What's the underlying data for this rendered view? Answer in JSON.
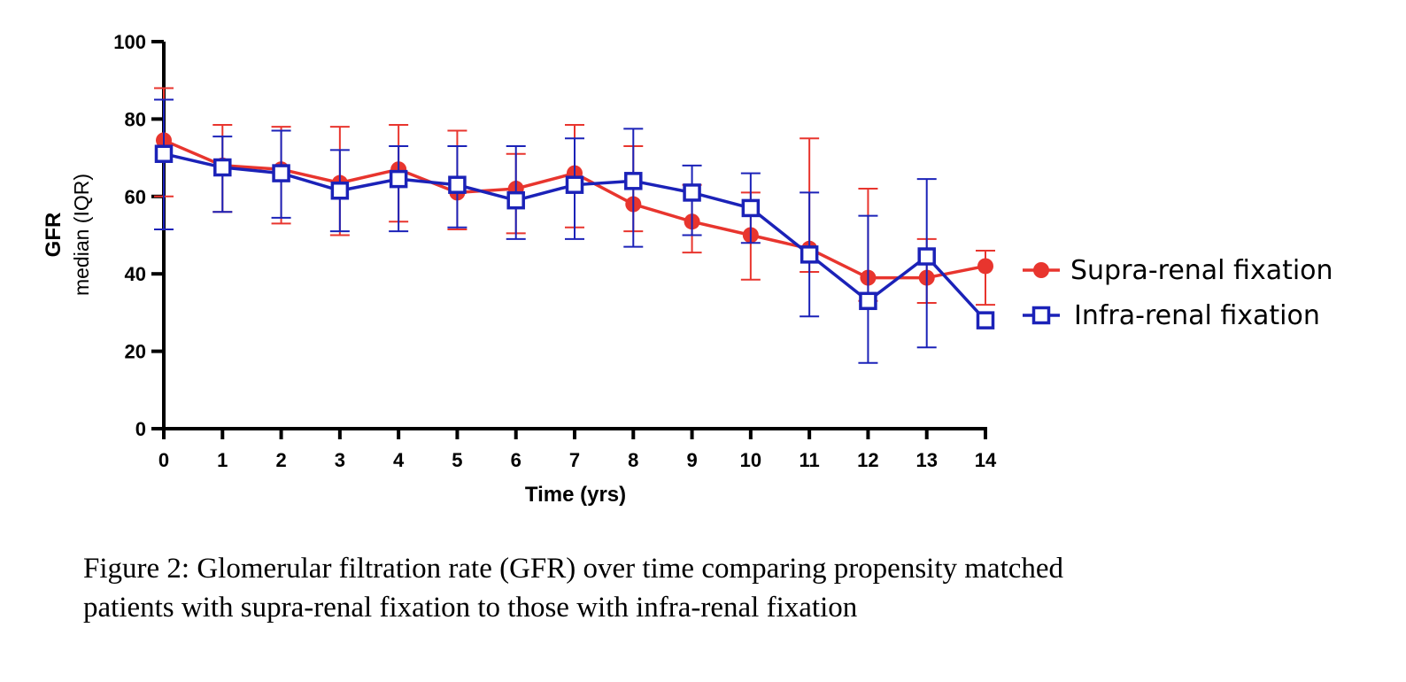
{
  "chart_data": {
    "type": "line",
    "title": "",
    "xlabel": "Time (yrs)",
    "ylabel": "GFR",
    "ylabel_sub": "median (IQR)",
    "xlim": [
      0,
      14
    ],
    "ylim": [
      0,
      100
    ],
    "x_ticks": [
      0,
      1,
      2,
      3,
      4,
      5,
      6,
      7,
      8,
      9,
      10,
      11,
      12,
      13,
      14
    ],
    "y_ticks": [
      0,
      20,
      40,
      60,
      80,
      100
    ],
    "grid": false,
    "legend_position": "right",
    "series": [
      {
        "name": "Supra-renal fixation",
        "color": "#e8352e",
        "marker": "filled-circle",
        "x": [
          0,
          1,
          2,
          3,
          4,
          5,
          6,
          7,
          8,
          9,
          10,
          11,
          12,
          13,
          14
        ],
        "median": [
          74.5,
          68,
          67,
          63.5,
          67,
          61,
          62,
          66,
          58,
          53.5,
          50,
          46.5,
          39,
          39,
          42
        ],
        "q1": [
          60,
          56,
          53,
          50,
          53.5,
          51.5,
          50.5,
          52,
          51,
          45.5,
          38.5,
          40.5,
          33,
          32.5,
          32
        ],
        "q3": [
          88,
          78.5,
          78,
          78,
          78.5,
          77,
          71,
          78.5,
          73,
          63,
          61,
          75,
          62,
          49,
          46
        ]
      },
      {
        "name": "Infra-renal fixation",
        "color": "#1b22b8",
        "marker": "open-square",
        "x": [
          0,
          1,
          2,
          3,
          4,
          5,
          6,
          7,
          8,
          9,
          10,
          11,
          12,
          13,
          14
        ],
        "median": [
          71,
          67.5,
          66,
          61.5,
          64.5,
          63,
          59,
          63,
          64,
          61,
          57,
          45,
          33,
          44.5,
          28
        ],
        "q1": [
          51.5,
          56,
          54.5,
          51,
          51,
          52,
          49,
          49,
          47,
          50,
          48,
          29,
          17,
          21,
          28
        ],
        "q3": [
          85,
          75.5,
          77,
          72,
          73,
          73,
          73,
          75,
          77.5,
          68,
          66,
          61,
          55,
          64.5,
          28
        ]
      }
    ]
  },
  "caption": {
    "line1": "Figure 2: Glomerular filtration rate (GFR) over time comparing propensity matched",
    "line2": "patients with supra-renal fixation to those with infra-renal fixation"
  }
}
